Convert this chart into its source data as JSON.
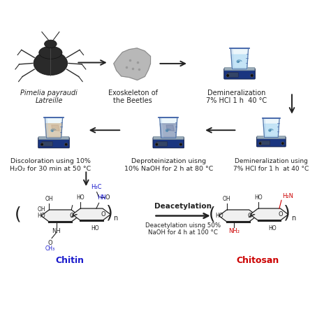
{
  "background_color": "#ffffff",
  "figsize": [
    4.74,
    4.79
  ],
  "dpi": 100,
  "labels": {
    "beetle": "Pimelia payraudi\nLatreille",
    "exoskeleton": "Exoskeleton of\nthe Beetles",
    "demin1": "Demineralization\n7% HCl 1 h  40 °C",
    "discolor": "Discoloration using 10%\nH₂O₂ for 30 min at 50 °C",
    "deprot": "Deproteinization uisng\n10% NaOH for 2 h at 80 °C",
    "demin2": "Demineralization using\n7% HCl for 1 h  at 40 °C",
    "deacetylation_arrow": "Deacetylation",
    "deacetylation_desc": "Deacetylation uisng 50%\nNaOH for 4 h at 100 °C",
    "chitin": "Chitin",
    "chitosan": "Chitosan"
  },
  "chitin_color": "#1a1acc",
  "chitosan_color": "#cc0000",
  "text_color": "#222222",
  "arrow_color": "#222222",
  "beaker_blue": "#2244aa",
  "beaker_lightblue": "#cce8f4",
  "plate_dark": "#1a3580",
  "plate_gray": "#a0a8b0"
}
